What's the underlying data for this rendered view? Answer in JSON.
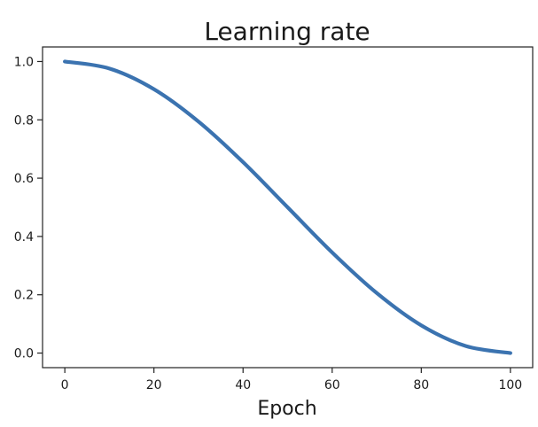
{
  "chart_data": {
    "type": "line",
    "title": "Learning rate",
    "xlabel": "Epoch",
    "ylabel": "",
    "xlim": [
      -5,
      105
    ],
    "ylim": [
      -0.05,
      1.05
    ],
    "xticks": [
      0,
      20,
      40,
      60,
      80,
      100
    ],
    "yticks": [
      0.0,
      0.2,
      0.4,
      0.6,
      0.8,
      1.0
    ],
    "xtick_labels": [
      "0",
      "20",
      "40",
      "60",
      "80",
      "100"
    ],
    "ytick_labels": [
      "0.0",
      "0.2",
      "0.4",
      "0.6",
      "0.8",
      "1.0"
    ],
    "grid": false,
    "series": [
      {
        "color": "#3b73b0",
        "x": [
          0,
          10,
          20,
          30,
          40,
          50,
          60,
          70,
          80,
          90,
          100
        ],
        "y": [
          1.0,
          0.976,
          0.905,
          0.794,
          0.655,
          0.5,
          0.345,
          0.206,
          0.095,
          0.024,
          0.0
        ]
      }
    ]
  }
}
